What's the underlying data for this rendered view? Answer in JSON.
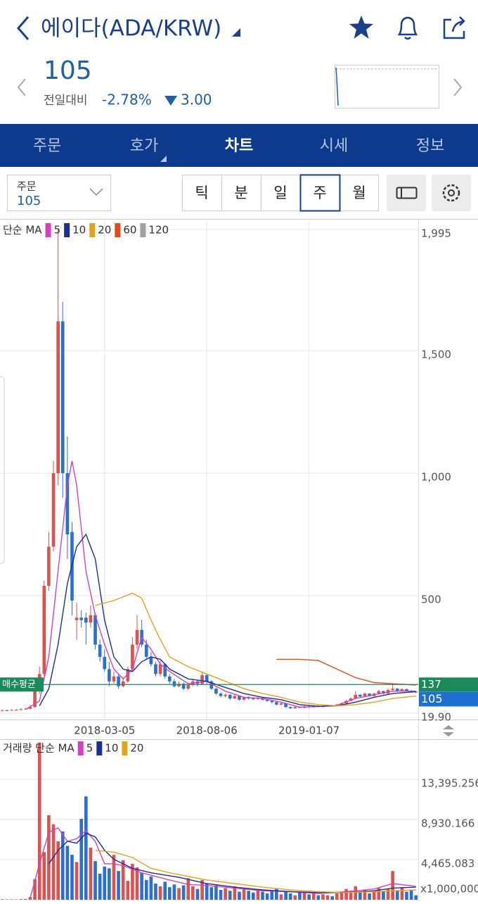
{
  "header": {
    "title": "에이다(ADA/KRW)",
    "price": "105",
    "change_label": "전일대비",
    "change_rate": "-2.78%",
    "change_amount": "3.00"
  },
  "tabs": [
    "주문",
    "호가",
    "차트",
    "시세",
    "정보"
  ],
  "order_box": {
    "label": "주문",
    "value": "105"
  },
  "periods": [
    "틱",
    "분",
    "일",
    "주",
    "월"
  ],
  "chart_data": [
    {
      "type": "candlestick",
      "legend_title": "단순 MA",
      "xlim": [
        -0.5,
        89.5
      ],
      "xticks": [
        {
          "value": 22,
          "label": "2018-03-05"
        },
        {
          "value": 44,
          "label": "2018-08-06"
        },
        {
          "value": 66,
          "label": "2019-01-07"
        }
      ],
      "ylim": [
        19.9,
        1995
      ],
      "yticks": [
        {
          "value": 19.9,
          "label": "19.90"
        },
        500,
        {
          "value": 1000,
          "label": "1,000"
        },
        {
          "value": 1500,
          "label": "1,500"
        },
        {
          "value": 1995,
          "label": "1,995"
        }
      ],
      "grid": true,
      "up_color": "#d9534f",
      "down_color": "#2a6fd1",
      "open": [
        30,
        32,
        31,
        33,
        34,
        36,
        38,
        45,
        110,
        180,
        540,
        700,
        1000,
        1620,
        1000,
        760,
        400,
        410,
        410,
        390,
        420,
        300,
        250,
        200,
        150,
        170,
        130,
        150,
        200,
        300,
        360,
        300,
        250,
        220,
        180,
        220,
        170,
        150,
        130,
        140,
        120,
        135,
        150,
        140,
        175,
        150,
        120,
        100,
        90,
        95,
        80,
        90,
        75,
        85,
        80,
        78,
        82,
        75,
        70,
        65,
        55,
        60,
        45,
        40,
        45,
        42,
        48,
        45,
        50,
        46,
        48,
        52,
        50,
        55,
        60,
        70,
        80,
        95,
        88,
        100,
        90,
        100,
        110,
        100,
        115,
        120,
        110,
        118,
        112,
        108
      ],
      "high": [
        35,
        34,
        36,
        37,
        40,
        42,
        55,
        130,
        210,
        560,
        760,
        1050,
        1995,
        1700,
        1150,
        800,
        470,
        440,
        430,
        460,
        430,
        320,
        280,
        230,
        190,
        180,
        165,
        210,
        330,
        420,
        400,
        320,
        270,
        230,
        235,
        225,
        180,
        160,
        150,
        145,
        145,
        160,
        155,
        190,
        180,
        155,
        125,
        105,
        100,
        98,
        95,
        92,
        88,
        90,
        84,
        86,
        84,
        78,
        72,
        68,
        64,
        62,
        48,
        48,
        47,
        52,
        50,
        53,
        52,
        51,
        55,
        54,
        58,
        63,
        74,
        85,
        110,
        98,
        105,
        102,
        104,
        116,
        112,
        120,
        140,
        123,
        122,
        120,
        115,
        110
      ],
      "low": [
        28,
        29,
        30,
        31,
        32,
        34,
        36,
        42,
        100,
        170,
        520,
        680,
        950,
        900,
        650,
        420,
        320,
        370,
        300,
        370,
        280,
        230,
        190,
        130,
        140,
        120,
        125,
        145,
        190,
        280,
        290,
        240,
        210,
        170,
        170,
        160,
        140,
        125,
        125,
        115,
        115,
        130,
        130,
        135,
        140,
        115,
        95,
        85,
        85,
        75,
        78,
        72,
        72,
        76,
        74,
        75,
        72,
        66,
        60,
        52,
        52,
        42,
        37,
        38,
        40,
        40,
        42,
        43,
        44,
        44,
        46,
        48,
        48,
        53,
        58,
        68,
        78,
        85,
        86,
        88,
        88,
        98,
        96,
        98,
        112,
        106,
        108,
        108,
        104,
        102
      ],
      "close": [
        32,
        31,
        33,
        34,
        36,
        38,
        45,
        110,
        180,
        540,
        700,
        1000,
        1620,
        1000,
        750,
        480,
        410,
        400,
        390,
        420,
        300,
        250,
        200,
        150,
        170,
        130,
        150,
        200,
        300,
        360,
        300,
        250,
        220,
        180,
        220,
        170,
        150,
        130,
        140,
        120,
        135,
        150,
        140,
        175,
        150,
        120,
        100,
        90,
        95,
        80,
        90,
        75,
        85,
        80,
        78,
        82,
        75,
        70,
        65,
        55,
        60,
        45,
        40,
        45,
        42,
        48,
        45,
        50,
        46,
        48,
        52,
        50,
        55,
        60,
        70,
        80,
        95,
        88,
        100,
        90,
        100,
        110,
        100,
        115,
        120,
        110,
        118,
        112,
        108,
        105
      ],
      "series": [
        {
          "name": "5",
          "color": "#d43fc4",
          "x": [
            5,
            8,
            10,
            12,
            14,
            15,
            16,
            18,
            20,
            22,
            24,
            26,
            28,
            30,
            32,
            34,
            36,
            40,
            44,
            48,
            52,
            56,
            60,
            64,
            68,
            72,
            76,
            80,
            84,
            89
          ],
          "values": [
            35,
            70,
            250,
            600,
            950,
            1050,
            950,
            600,
            420,
            300,
            200,
            160,
            200,
            330,
            280,
            220,
            190,
            140,
            150,
            110,
            85,
            80,
            65,
            45,
            47,
            52,
            80,
            95,
            110,
            110
          ]
        },
        {
          "name": "10",
          "color": "#1a2f9c",
          "x": [
            8,
            10,
            12,
            14,
            16,
            18,
            20,
            22,
            24,
            26,
            28,
            30,
            32,
            34,
            36,
            40,
            44,
            48,
            52,
            56,
            60,
            64,
            68,
            72,
            76,
            80,
            84,
            89
          ],
          "values": [
            50,
            120,
            300,
            550,
            700,
            750,
            650,
            400,
            250,
            200,
            190,
            230,
            250,
            240,
            200,
            160,
            150,
            125,
            100,
            85,
            75,
            55,
            48,
            50,
            65,
            85,
            100,
            108
          ]
        },
        {
          "name": "20",
          "color": "#e8a21a",
          "x": [
            20,
            24,
            28,
            30,
            32,
            34,
            36,
            40,
            44,
            48,
            52,
            56,
            60,
            64,
            68,
            72,
            76,
            80,
            84,
            89
          ],
          "values": [
            460,
            480,
            510,
            490,
            400,
            320,
            250,
            210,
            180,
            150,
            120,
            100,
            85,
            65,
            55,
            50,
            55,
            65,
            80,
            90
          ]
        },
        {
          "name": "60",
          "color": "#e64a19",
          "x": [
            59,
            64,
            68,
            72,
            76,
            80,
            84,
            89
          ],
          "values": [
            240,
            240,
            235,
            200,
            165,
            145,
            140,
            135
          ]
        },
        {
          "name": "120",
          "color": "#a0a0a0",
          "x": [],
          "values": []
        }
      ],
      "reference_line": {
        "label": "매수평균",
        "value": 137,
        "color": "#1a8a5c"
      },
      "current": {
        "value": 105,
        "color": "#1f6fd1"
      }
    },
    {
      "type": "bar",
      "legend_title": "거래량 단순 MA",
      "xlim": [
        -0.5,
        89.5
      ],
      "ylim": [
        0,
        17860
      ],
      "yticks": [
        {
          "value": 4465.083,
          "label": "4,465.083"
        },
        {
          "value": 8930.166,
          "label": "8,930.166"
        },
        {
          "value": 13395.256,
          "label": "13,395.256"
        }
      ],
      "unit_label": "x1,000,000",
      "grid": true,
      "values": [
        60,
        40,
        50,
        40,
        70,
        90,
        300,
        2300,
        17500,
        5300,
        9400,
        8400,
        6500,
        7600,
        6000,
        5000,
        4200,
        9000,
        11500,
        5800,
        4300,
        2900,
        3700,
        3500,
        5000,
        3200,
        4400,
        2100,
        4000,
        3600,
        3000,
        2200,
        2600,
        1800,
        1500,
        2000,
        1400,
        1700,
        1300,
        1600,
        2400,
        1500,
        1200,
        2200,
        1800,
        1400,
        1600,
        1100,
        1300,
        1000,
        1500,
        900,
        1200,
        1000,
        800,
        1100,
        900,
        700,
        1000,
        1200,
        600,
        900,
        700,
        500,
        800,
        900,
        600,
        700,
        500,
        600,
        500,
        400,
        700,
        800,
        1200,
        900,
        1500,
        800,
        1100,
        700,
        1000,
        1300,
        900,
        1200,
        3200,
        1000,
        1400,
        900,
        1100,
        500
      ],
      "series": [
        {
          "name": "5",
          "color": "#d43fc4",
          "x": [
            6,
            8,
            10,
            12,
            14,
            16,
            18,
            20,
            22,
            24,
            26,
            30,
            36,
            40,
            44,
            50,
            56,
            62,
            68,
            74,
            80,
            84,
            89
          ],
          "values": [
            200,
            4000,
            7500,
            8000,
            6500,
            6800,
            7700,
            6500,
            4000,
            4000,
            3800,
            3000,
            2200,
            1700,
            1600,
            1300,
            1000,
            900,
            700,
            900,
            1200,
            1800,
            1500
          ]
        },
        {
          "name": "10",
          "color": "#1a2f9c",
          "x": [
            10,
            12,
            14,
            16,
            18,
            20,
            22,
            24,
            28,
            32,
            38,
            44,
            50,
            56,
            62,
            68,
            74,
            80,
            84,
            89
          ],
          "values": [
            4000,
            5500,
            6500,
            6300,
            7400,
            7000,
            5500,
            4500,
            3500,
            3000,
            2500,
            1800,
            1400,
            1100,
            900,
            800,
            800,
            1000,
            1300,
            1400
          ]
        },
        {
          "name": "20",
          "color": "#e8a21a",
          "x": [
            20,
            24,
            28,
            32,
            36,
            40,
            44,
            50,
            56,
            62,
            68,
            74,
            80,
            84,
            89
          ],
          "values": [
            5500,
            5300,
            4700,
            3500,
            3000,
            2600,
            2200,
            1800,
            1400,
            1100,
            900,
            800,
            900,
            1000,
            1100
          ]
        }
      ]
    }
  ]
}
